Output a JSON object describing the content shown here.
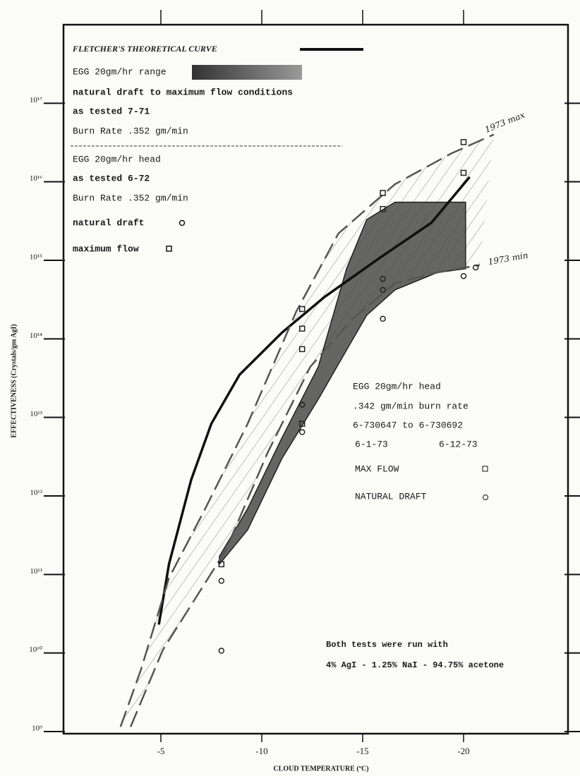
{
  "chart_data": {
    "type": "line",
    "x_label": "CLOUD TEMPERATURE (ºC)",
    "y_label": "EFFECTIVENESS (Crystals/gm AgI)",
    "xlim": [
      0,
      -25
    ],
    "xticks": [
      -5,
      -10,
      -15,
      -20
    ],
    "ylim": [
      1000000000.0,
      1e+18
    ],
    "log_y": true,
    "yticks": [
      {
        "value": 1000000000.0,
        "label": "10⁹"
      },
      {
        "value": 10000000000.0,
        "label": "10¹⁰"
      },
      {
        "value": 100000000000.0,
        "label": "10¹¹"
      },
      {
        "value": 1000000000000.0,
        "label": "10¹²"
      },
      {
        "value": 10000000000000.0,
        "label": "10¹³"
      },
      {
        "value": 100000000000000.0,
        "label": "10¹⁴"
      },
      {
        "value": 1000000000000000.0,
        "label": "10¹⁵"
      },
      {
        "value": 1e+16,
        "label": "10¹⁶"
      },
      {
        "value": 1e+17,
        "label": "10¹⁷"
      }
    ],
    "series": [
      {
        "name": "FLETCHER'S THEORETICAL CURVE",
        "color": "#111111",
        "style": "solid",
        "x": [
          -4.9,
          -5.4,
          -6.5,
          -7.5,
          -8.9,
          -11,
          -13.1,
          -15.9,
          -18.4,
          -20.3
        ],
        "values": [
          23000000000.0,
          135000000000.0,
          1600000000000.0,
          8300000000000.0,
          35000000000000.0,
          120000000000000.0,
          340000000000000.0,
          1100000000000000.0,
          3000000000000000.0,
          1.15e+16
        ]
      },
      {
        "name": "1973 max",
        "color": "#555555",
        "style": "dashed",
        "x": [
          -3.0,
          -4.0,
          -5.4,
          -7.2,
          -9.3,
          -11.7,
          -13.8,
          -16.6,
          -19.4,
          -21.5
        ],
        "values": [
          1150000000.0,
          6000000000.0,
          90000000000.0,
          690000000000.0,
          8300000000000.0,
          220000000000000.0,
          2200000000000000.0,
          9300000000000000.0,
          2.3e+16,
          4e+16
        ]
      },
      {
        "name": "1973 min",
        "color": "#555555",
        "style": "dashed",
        "x": [
          -3.5,
          -5.1,
          -8.2,
          -10.3,
          -12.4,
          -14.5,
          -16.6,
          -18.7,
          -20.8
        ],
        "values": [
          1150000000.0,
          11000000000.0,
          200000000000.0,
          3600000000000.0,
          44000000000000.0,
          180000000000000.0,
          510000000000000.0,
          700000000000000.0,
          870000000000000.0
        ]
      }
    ],
    "range": {
      "name": "EGG 20gm/hr range",
      "color": "#4a4a4a",
      "x": [
        -7.9,
        -9.3,
        -11,
        -12.8,
        -14.2,
        -15.2,
        -16.6,
        -18.7,
        -20.1
      ],
      "upper": [
        170000000000.0,
        690000000000.0,
        5500000000000.0,
        44000000000000.0,
        780000000000000.0,
        3300000000000000.0,
        5500000000000000.0,
        5500000000000000.0,
        5500000000000000.0
      ],
      "lower": [
        135000000000.0,
        370000000000.0,
        3000000000000.0,
        17000000000000.0,
        72000000000000.0,
        200000000000000.0,
        420000000000000.0,
        700000000000000.0,
        780000000000000.0
      ]
    },
    "points": [
      {
        "name": "natural draft",
        "marker": "circle",
        "color": "#222222",
        "x": [
          -20.6,
          -20,
          -16,
          -16,
          -16,
          -12,
          -12,
          -8,
          -8
        ],
        "values": [
          810000000000000.0,
          630000000000000.0,
          580000000000000.0,
          420000000000000.0,
          180000000000000.0,
          14500000000000.0,
          6500000000000.0,
          83000000000.0,
          10700000000.0
        ]
      },
      {
        "name": "maximum flow",
        "marker": "square",
        "color": "#222222",
        "x": [
          -20,
          -20,
          -16,
          -16,
          -12,
          -12,
          -12,
          -12,
          -8
        ],
        "values": [
          3.2e+16,
          1.3e+16,
          7200000000000000.0,
          4500000000000000.0,
          240000000000000.0,
          135000000000000.0,
          74000000000000.0,
          8300000000000.0,
          135000000000.0
        ]
      }
    ],
    "annotations": {
      "legend": [
        "natural draft to maximum flow conditions",
        "as tested 7-71",
        "Burn Rate .352 gm/min",
        "EGG 20gm/hr head",
        "as tested 6-72",
        "Burn Rate .352 gm/min"
      ],
      "note": [
        "EGG 20gm/hr head",
        ".342 gm/min burn rate",
        "6-730647 to 6-730692",
        "6-1-73",
        "6-12-73",
        "MAX FLOW",
        "NATURAL DRAFT"
      ],
      "footnote": [
        "Both tests were run with",
        "4% AgI - 1.25% NaI - 94.75% acetone"
      ]
    }
  }
}
